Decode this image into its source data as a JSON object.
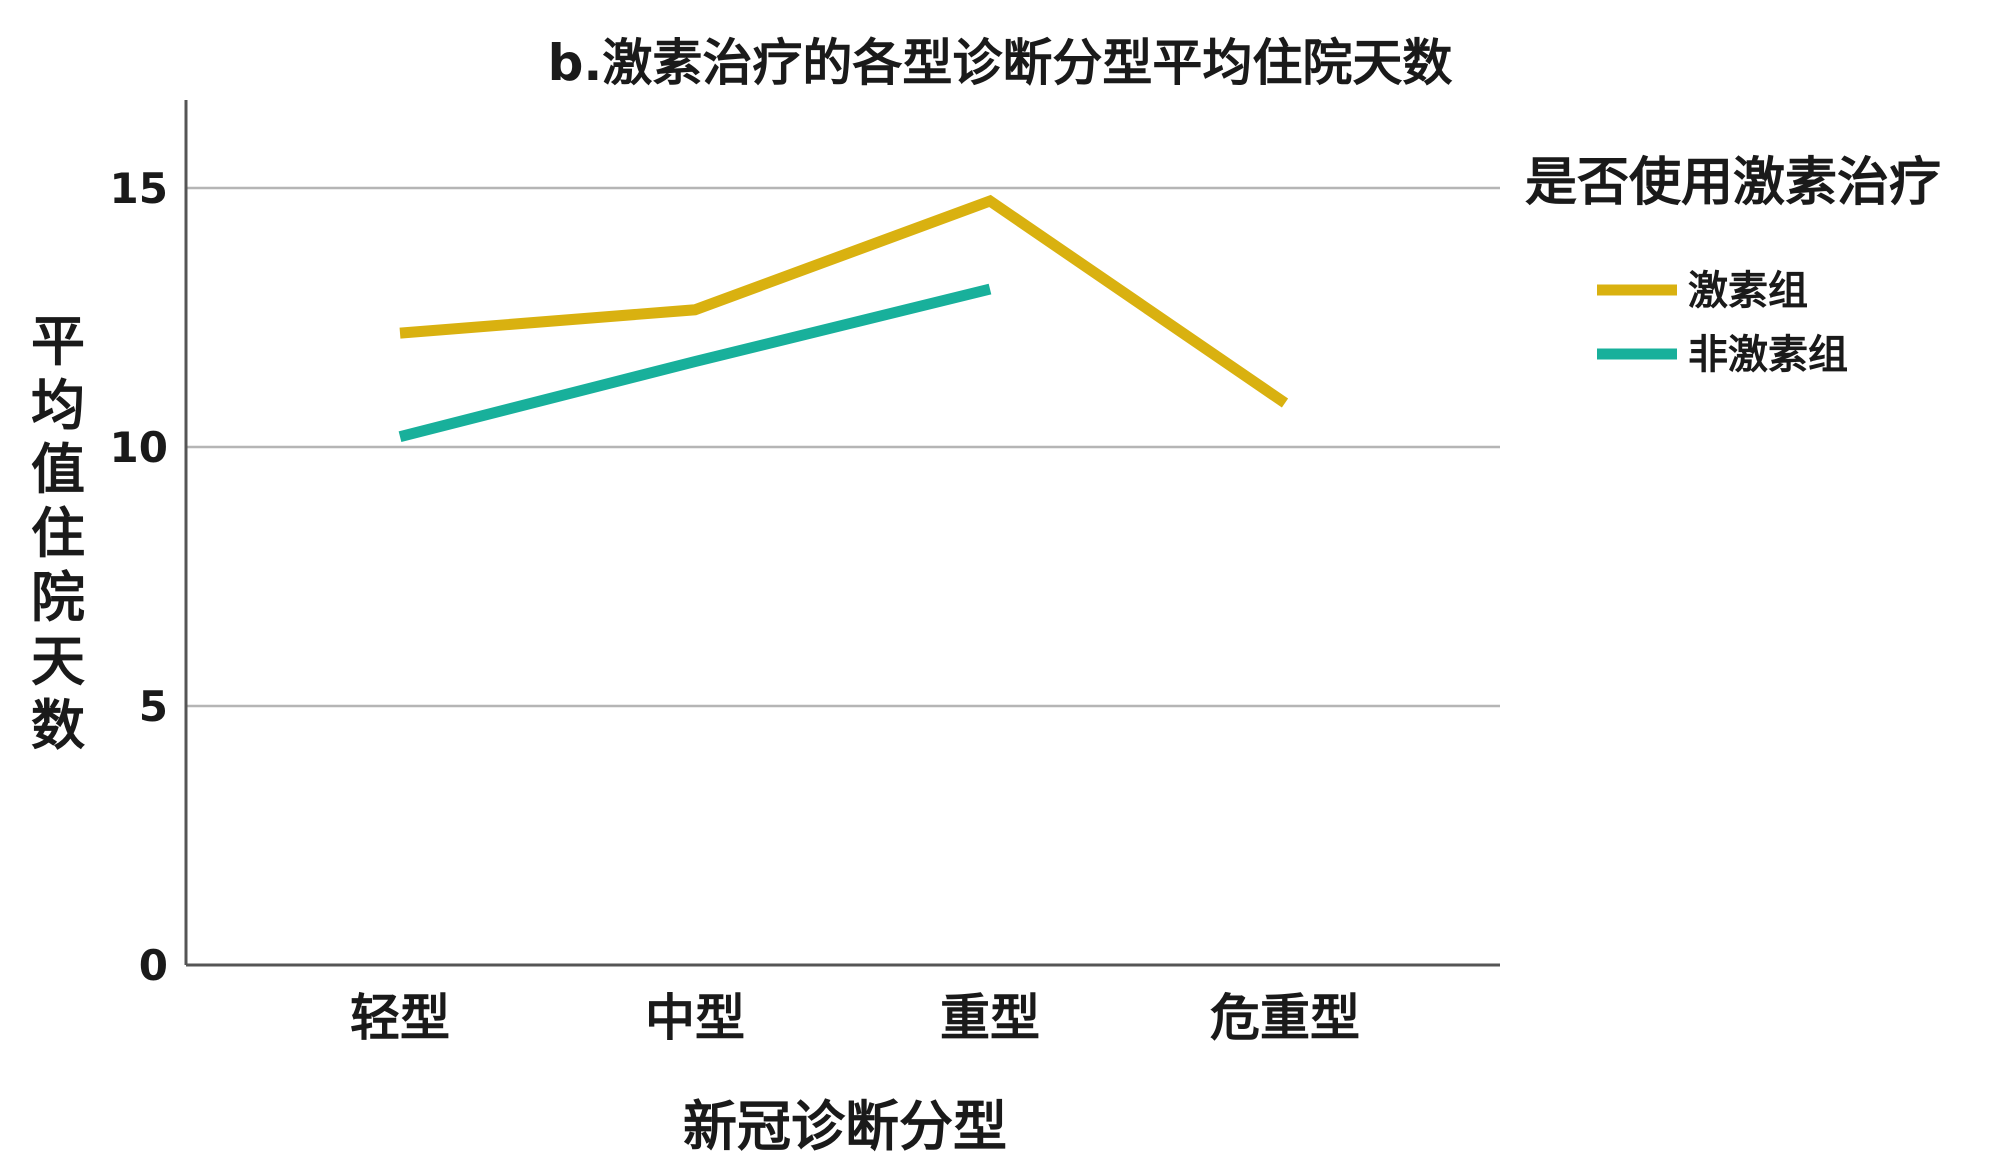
{
  "chart_data": {
    "type": "line",
    "title": "b.激素治疗的各型诊断分型平均住院天数",
    "xlabel": "新冠诊断分型",
    "ylabel": "平均值住院天数",
    "categories": [
      "轻型",
      "中型",
      "重型",
      "危重型"
    ],
    "ylim": [
      0,
      16.7
    ],
    "yticks": [
      0,
      5,
      10,
      15
    ],
    "grid": true,
    "legend": {
      "title": "是否使用激素治疗",
      "placement": "right"
    },
    "series": [
      {
        "name": "激素组",
        "color": "#d9b110",
        "values": [
          12.2,
          12.65,
          14.75,
          10.85
        ]
      },
      {
        "name": "非激素组",
        "color": "#18b09b",
        "values": [
          10.2,
          11.65,
          13.05,
          null
        ]
      }
    ]
  }
}
